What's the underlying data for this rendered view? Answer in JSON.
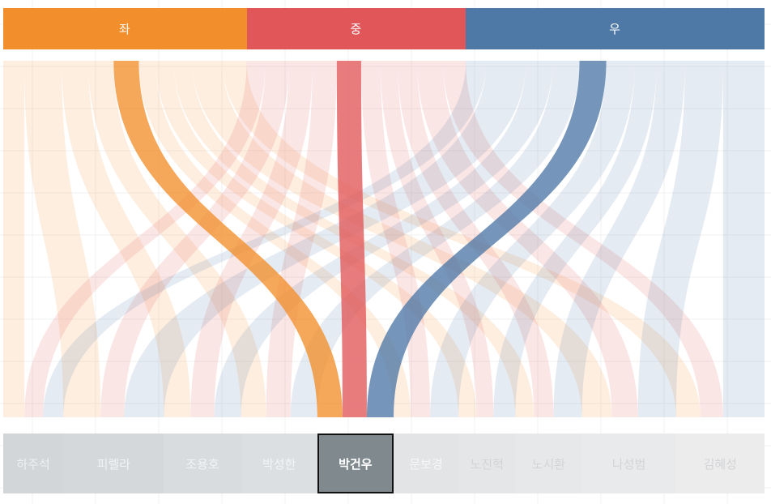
{
  "chart_data": {
    "type": "sankey",
    "source_categories": [
      {
        "label": "좌",
        "weight": 300,
        "color": "#f28e2c"
      },
      {
        "label": "중",
        "weight": 270,
        "color": "#e15759"
      },
      {
        "label": "우",
        "weight": 368,
        "color": "#4e79a7"
      }
    ],
    "target_categories": [
      {
        "label": "하주석",
        "weight": 74,
        "bg": "#d3d6d9",
        "color": "#eef0f1"
      },
      {
        "label": "피렐라",
        "weight": 124,
        "bg": "#d5d8db",
        "color": "#f2f3f4"
      },
      {
        "label": "조용호",
        "weight": 95,
        "bg": "#d9dcdf",
        "color": "#f2f3f4"
      },
      {
        "label": "박성한",
        "weight": 94,
        "bg": "#dcdfe1",
        "color": "#f3f4f5"
      },
      {
        "label": "박건우",
        "weight": 94,
        "bg": "#808a8e",
        "color": "#ffffff",
        "selected": true
      },
      {
        "label": "문보경",
        "weight": 80,
        "bg": "#e2e4e5",
        "color": "#f7f7f7"
      },
      {
        "label": "노진혁",
        "weight": 70,
        "bg": "#e5e6e7",
        "color": "#d2d4d6"
      },
      {
        "label": "노시환",
        "weight": 82,
        "bg": "#e7e8e9",
        "color": "#d2d4d6"
      },
      {
        "label": "나성범",
        "weight": 116,
        "bg": "#e9eaeb",
        "color": "#d2d4d6"
      },
      {
        "label": "김혜성",
        "weight": 109,
        "bg": "#ececed",
        "color": "#d2d4d6"
      }
    ],
    "selected_target": "박건우",
    "flows": [
      {
        "target": "하주석",
        "좌": 26,
        "중": 23,
        "우": 25
      },
      {
        "target": "피렐라",
        "좌": 46,
        "중": 29,
        "우": 49
      },
      {
        "target": "조용호",
        "좌": 33,
        "중": 29,
        "우": 33
      },
      {
        "target": "박성한",
        "좌": 31,
        "중": 30,
        "우": 33
      },
      {
        "target": "박건우",
        "좌": 31,
        "중": 30,
        "우": 33
      },
      {
        "target": "문보경",
        "좌": 21,
        "중": 24,
        "우": 35
      },
      {
        "target": "노진혁",
        "좌": 22,
        "중": 21,
        "우": 27
      },
      {
        "target": "노시환",
        "좌": 23,
        "중": 24,
        "우": 35
      },
      {
        "target": "나성범",
        "좌": 37,
        "중": 32,
        "우": 47
      },
      {
        "target": "김혜성",
        "좌": 30,
        "중": 28,
        "우": 51
      }
    ]
  }
}
